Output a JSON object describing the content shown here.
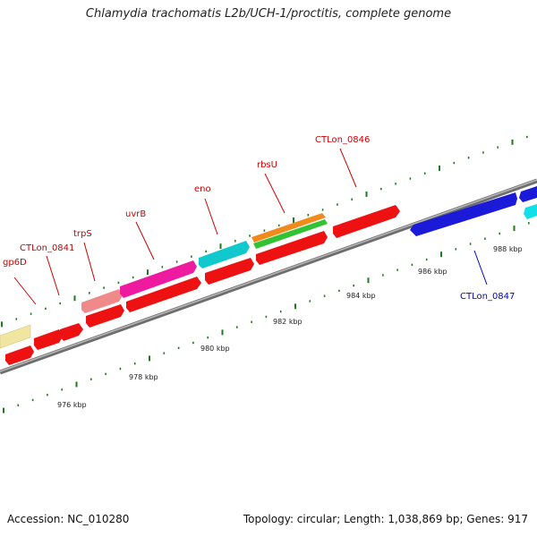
{
  "title": "Chlamydia trachomatis L2b/UCH-1/proctitis, complete genome",
  "footer": {
    "accession": "Accession: NC_010280",
    "summary": "Topology: circular; Length: 1,038,869 bp; Genes: 917"
  },
  "colors": {
    "red": "#ee1111",
    "blue": "#1a1ad8",
    "cyan": "#11c8cc",
    "magenta": "#ee1aa0",
    "salmon": "#f08a8a",
    "orange": "#f08a1a",
    "green": "#33c233",
    "yellow": "#f0e6a0",
    "backbone": "#8a8a8a",
    "tick": "#1f7a1f",
    "forward_label": "#cc0000",
    "reverse_label": "#0000cc"
  },
  "scale_labels": [
    {
      "text": "976 kbp",
      "kbp": 976
    },
    {
      "text": "978 kbp",
      "kbp": 978
    },
    {
      "text": "980 kbp",
      "kbp": 980
    },
    {
      "text": "982 kbp",
      "kbp": 982
    },
    {
      "text": "984 kbp",
      "kbp": 984
    },
    {
      "text": "986 kbp",
      "kbp": 986
    },
    {
      "text": "988 kbp",
      "kbp": 988
    }
  ],
  "gene_labels": [
    {
      "name": "gp6D",
      "strand": "forward"
    },
    {
      "name": "CTLon_0841",
      "strand": "forward"
    },
    {
      "name": "trpS",
      "strand": "forward"
    },
    {
      "name": "uvrB",
      "strand": "forward"
    },
    {
      "name": "eno",
      "strand": "forward"
    },
    {
      "name": "rbsU",
      "strand": "forward"
    },
    {
      "name": "CTLon_0846",
      "strand": "forward"
    },
    {
      "name": "CTLon_0847",
      "strand": "reverse"
    }
  ]
}
